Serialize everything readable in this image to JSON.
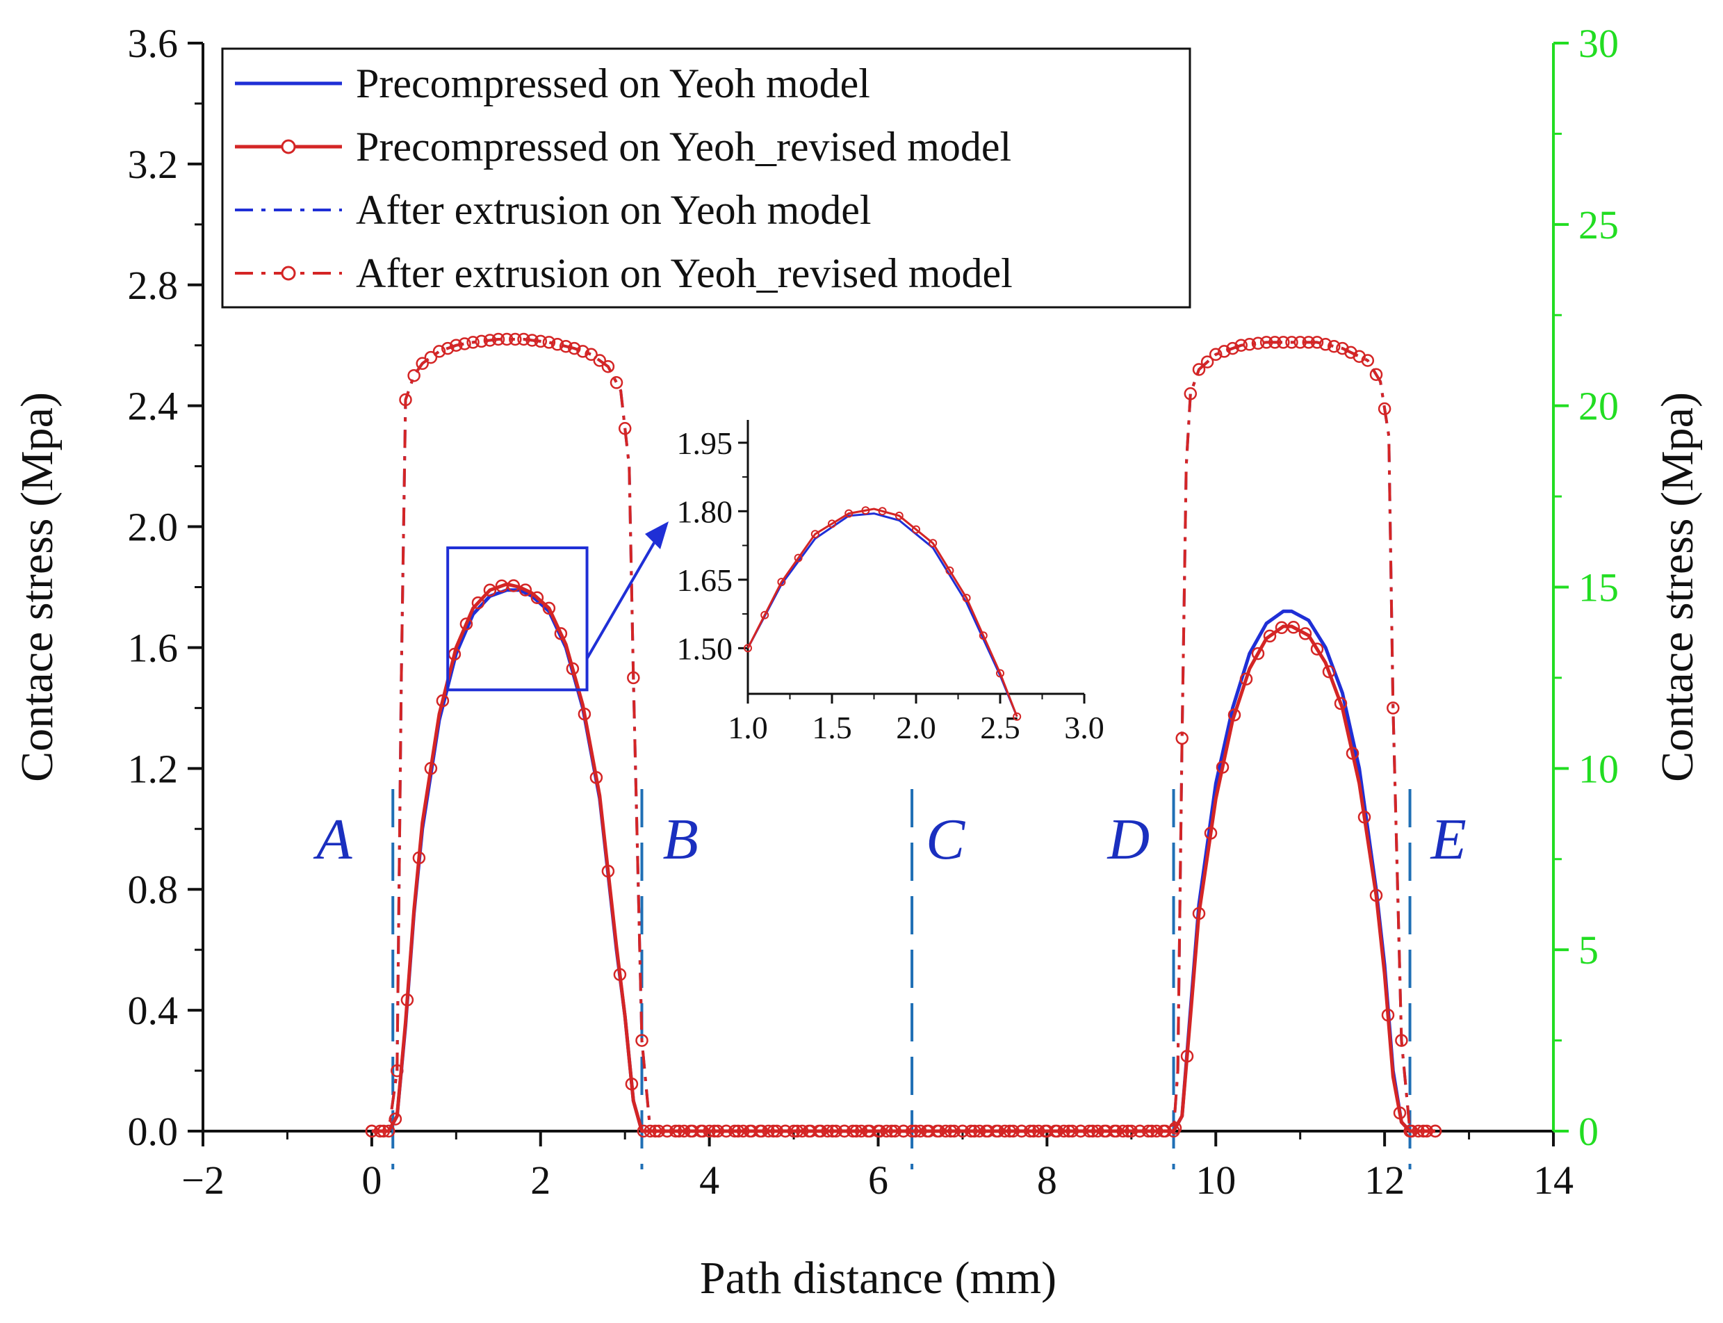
{
  "chart_data": {
    "type": "line",
    "xlabel": "Path distance (mm)",
    "ylabel": "Contace stress (Mpa)",
    "y2label": "Contace stress (Mpa)",
    "xlim": [
      -2,
      14
    ],
    "ylim": [
      0.0,
      3.6
    ],
    "y2lim": [
      0,
      30
    ],
    "x_ticks": [
      "−2",
      "0",
      "2",
      "4",
      "6",
      "8",
      "10",
      "12",
      "14"
    ],
    "x_tick_values": [
      -2,
      0,
      2,
      4,
      6,
      8,
      10,
      12,
      14
    ],
    "y_ticks": [
      "0.0",
      "0.4",
      "0.8",
      "1.2",
      "1.6",
      "2.0",
      "2.4",
      "2.8",
      "3.2",
      "3.6"
    ],
    "y_tick_values": [
      0.0,
      0.4,
      0.8,
      1.2,
      1.6,
      2.0,
      2.4,
      2.8,
      3.2,
      3.6
    ],
    "y2_ticks": [
      "0",
      "5",
      "10",
      "15",
      "20",
      "25",
      "30"
    ],
    "y2_tick_values": [
      0,
      5,
      10,
      15,
      20,
      25,
      30
    ],
    "right_axis_color": "#22dd22",
    "series": [
      {
        "name": "Precompressed on Yeoh model",
        "style": "solid",
        "marker": "none",
        "color": "#1f2fd6",
        "axis": "left",
        "x": [
          0.0,
          0.2,
          0.3,
          0.4,
          0.5,
          0.6,
          0.8,
          1.0,
          1.2,
          1.4,
          1.6,
          1.75,
          1.9,
          2.1,
          2.3,
          2.5,
          2.7,
          2.9,
          3.0,
          3.1,
          3.2,
          3.3,
          3.5,
          9.5,
          9.6,
          9.7,
          9.8,
          10.0,
          10.2,
          10.4,
          10.6,
          10.8,
          10.9,
          11.1,
          11.3,
          11.5,
          11.7,
          11.9,
          12.0,
          12.1,
          12.2,
          12.3,
          12.6
        ],
        "values": [
          0.0,
          0.0,
          0.05,
          0.35,
          0.72,
          1.0,
          1.36,
          1.58,
          1.71,
          1.77,
          1.79,
          1.79,
          1.77,
          1.72,
          1.6,
          1.4,
          1.1,
          0.6,
          0.38,
          0.1,
          0.0,
          0.0,
          0.0,
          0.0,
          0.05,
          0.4,
          0.75,
          1.15,
          1.4,
          1.58,
          1.68,
          1.72,
          1.72,
          1.69,
          1.6,
          1.45,
          1.2,
          0.8,
          0.55,
          0.2,
          0.03,
          0.0,
          0.0
        ]
      },
      {
        "name": "Precompressed on Yeoh_revised model",
        "style": "solid",
        "marker": "circle",
        "color": "#d42525",
        "axis": "left",
        "x": [
          0.0,
          0.2,
          0.3,
          0.4,
          0.5,
          0.6,
          0.8,
          1.0,
          1.2,
          1.4,
          1.6,
          1.75,
          1.9,
          2.1,
          2.3,
          2.5,
          2.7,
          2.9,
          3.0,
          3.1,
          3.2,
          3.3,
          3.5,
          9.5,
          9.6,
          9.7,
          9.8,
          10.0,
          10.2,
          10.4,
          10.6,
          10.8,
          10.9,
          11.1,
          11.3,
          11.5,
          11.7,
          11.9,
          12.0,
          12.1,
          12.2,
          12.3,
          12.6
        ],
        "values": [
          0.0,
          0.0,
          0.05,
          0.36,
          0.73,
          1.02,
          1.38,
          1.6,
          1.73,
          1.79,
          1.81,
          1.8,
          1.78,
          1.73,
          1.61,
          1.41,
          1.11,
          0.61,
          0.38,
          0.1,
          0.0,
          0.0,
          0.0,
          0.0,
          0.05,
          0.38,
          0.72,
          1.1,
          1.36,
          1.53,
          1.63,
          1.67,
          1.67,
          1.64,
          1.55,
          1.4,
          1.15,
          0.78,
          0.52,
          0.18,
          0.03,
          0.0,
          0.0
        ]
      },
      {
        "name": "After extrusion on Yeoh model",
        "style": "dash-dot",
        "marker": "none",
        "color": "#1f2fd6",
        "axis": "left",
        "x": [
          0.0,
          0.2,
          0.3,
          0.35,
          0.4,
          0.5,
          0.6,
          0.8,
          1.0,
          1.2,
          1.5,
          1.8,
          2.1,
          2.4,
          2.6,
          2.8,
          2.95,
          3.05,
          3.1,
          3.2,
          3.3,
          3.5,
          9.5,
          9.55,
          9.6,
          9.65,
          9.7,
          9.8,
          10.0,
          10.3,
          10.6,
          10.9,
          11.2,
          11.5,
          11.8,
          11.95,
          12.05,
          12.1,
          12.2,
          12.3,
          12.6
        ],
        "values": [
          0.0,
          0.0,
          0.2,
          1.5,
          2.42,
          2.5,
          2.54,
          2.58,
          2.6,
          2.61,
          2.62,
          2.62,
          2.61,
          2.59,
          2.57,
          2.53,
          2.45,
          2.2,
          1.5,
          0.3,
          0.0,
          0.0,
          0.0,
          0.2,
          1.3,
          2.2,
          2.44,
          2.52,
          2.57,
          2.6,
          2.61,
          2.61,
          2.61,
          2.59,
          2.55,
          2.48,
          2.3,
          1.4,
          0.3,
          0.0,
          0.0
        ]
      },
      {
        "name": "After extrusion on Yeoh_revised model",
        "style": "dash-dot",
        "marker": "circle",
        "color": "#d42525",
        "axis": "left",
        "x": [
          0.0,
          0.2,
          0.3,
          0.35,
          0.4,
          0.5,
          0.6,
          0.8,
          1.0,
          1.2,
          1.5,
          1.8,
          2.1,
          2.4,
          2.6,
          2.8,
          2.95,
          3.05,
          3.1,
          3.2,
          3.3,
          3.5,
          9.5,
          9.55,
          9.6,
          9.65,
          9.7,
          9.8,
          10.0,
          10.3,
          10.6,
          10.9,
          11.2,
          11.5,
          11.8,
          11.95,
          12.05,
          12.1,
          12.2,
          12.3,
          12.6
        ],
        "values": [
          0.0,
          0.0,
          0.2,
          1.5,
          2.42,
          2.5,
          2.54,
          2.58,
          2.6,
          2.61,
          2.62,
          2.62,
          2.61,
          2.59,
          2.57,
          2.53,
          2.45,
          2.2,
          1.5,
          0.3,
          0.0,
          0.0,
          0.0,
          0.2,
          1.3,
          2.2,
          2.44,
          2.52,
          2.57,
          2.6,
          2.61,
          2.61,
          2.61,
          2.59,
          2.55,
          2.48,
          2.3,
          1.4,
          0.3,
          0.0,
          0.0
        ]
      }
    ],
    "region_markers": [
      {
        "label": "A",
        "x": 0.25
      },
      {
        "label": "B",
        "x": 3.2
      },
      {
        "label": "C",
        "x": 6.4
      },
      {
        "label": "D",
        "x": 9.5
      },
      {
        "label": "E",
        "x": 12.3
      }
    ],
    "zoom_box": {
      "x_range": [
        0.9,
        2.55
      ],
      "y_range": [
        1.46,
        1.93
      ]
    },
    "legend_position": "top-left",
    "inset": {
      "xlim": [
        1.0,
        3.0
      ],
      "ylim": [
        1.4,
        2.0
      ],
      "x_ticks": [
        "1.0",
        "1.5",
        "2.0",
        "2.5",
        "3.0"
      ],
      "x_tick_values": [
        1.0,
        1.5,
        2.0,
        2.5,
        3.0
      ],
      "y_ticks": [
        "1.50",
        "1.65",
        "1.80",
        "1.95"
      ],
      "y_tick_values": [
        1.5,
        1.65,
        1.8,
        1.95
      ],
      "series": [
        {
          "name": "Precompressed on Yeoh model",
          "color": "#1f2fd6",
          "x": [
            1.0,
            1.2,
            1.4,
            1.6,
            1.75,
            1.9,
            2.1,
            2.3,
            2.5,
            2.6
          ],
          "values": [
            1.5,
            1.64,
            1.74,
            1.79,
            1.795,
            1.78,
            1.72,
            1.6,
            1.44,
            1.35
          ]
        },
        {
          "name": "Precompressed on Yeoh_revised model",
          "color": "#d42525",
          "x": [
            1.0,
            1.2,
            1.4,
            1.6,
            1.75,
            1.9,
            2.1,
            2.3,
            2.5,
            2.6
          ],
          "values": [
            1.5,
            1.645,
            1.75,
            1.795,
            1.805,
            1.79,
            1.73,
            1.61,
            1.445,
            1.35
          ]
        }
      ]
    }
  }
}
